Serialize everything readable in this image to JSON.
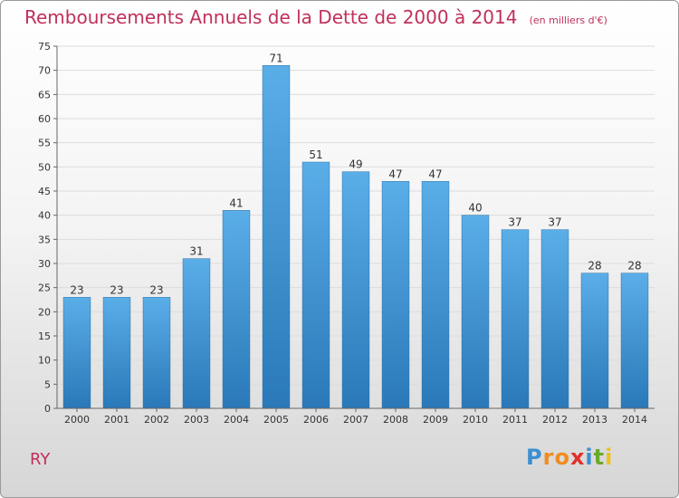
{
  "chart_data": {
    "type": "bar",
    "title": "Remboursements Annuels de la Dette de 2000 à 2014",
    "subtitle": "(en milliers d'€)",
    "categories": [
      "2000",
      "2001",
      "2002",
      "2003",
      "2004",
      "2005",
      "2006",
      "2007",
      "2008",
      "2009",
      "2010",
      "2011",
      "2012",
      "2013",
      "2014"
    ],
    "values": [
      23,
      23,
      23,
      31,
      41,
      71,
      51,
      49,
      47,
      47,
      40,
      37,
      37,
      28,
      28
    ],
    "ylim": [
      0,
      75
    ],
    "yticks": [
      0,
      5,
      10,
      15,
      20,
      25,
      30,
      35,
      40,
      45,
      50,
      55,
      60,
      65,
      70,
      75
    ],
    "grid": true,
    "bar_color_top": "#5aaee8",
    "bar_color_bottom": "#2a78b8"
  },
  "commune": "RY",
  "logo": {
    "letters": [
      "P",
      "r",
      "o",
      "x",
      "i",
      "t",
      "i"
    ],
    "colors": [
      "#3c8fd1",
      "#f08c1e",
      "#f08c1e",
      "#e0302a",
      "#3c8fd1",
      "#6aaa2a",
      "#f0c01e"
    ]
  }
}
